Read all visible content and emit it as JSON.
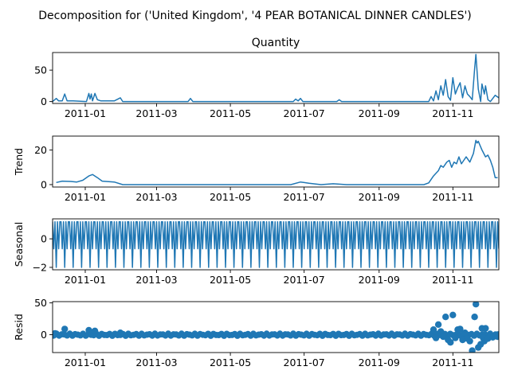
{
  "suptitle": "Decomposition for ('United Kingdom', '4 PEAR BOTANICAL DINNER CANDLES')",
  "line_color": "#1f77b4",
  "x_ticks": [
    "2011-01",
    "2011-03",
    "2011-05",
    "2011-07",
    "2011-09",
    "2011-11"
  ],
  "chart_data": [
    {
      "type": "line",
      "title": "Quantity",
      "ylabel": "",
      "ylim": [
        -3,
        78
      ],
      "yticks": [
        0,
        50
      ],
      "x_range": [
        "2010-12-05",
        "2011-12-09"
      ],
      "points": [
        [
          "2010-12-05",
          0
        ],
        [
          "2010-12-08",
          5
        ],
        [
          "2010-12-10",
          1
        ],
        [
          "2010-12-13",
          1
        ],
        [
          "2010-12-15",
          12
        ],
        [
          "2010-12-17",
          1
        ],
        [
          "2010-12-22",
          1
        ],
        [
          "2011-01-02",
          0
        ],
        [
          "2011-01-04",
          13
        ],
        [
          "2011-01-05",
          4
        ],
        [
          "2011-01-06",
          12
        ],
        [
          "2011-01-07",
          1
        ],
        [
          "2011-01-09",
          13
        ],
        [
          "2011-01-11",
          3
        ],
        [
          "2011-01-14",
          1
        ],
        [
          "2011-01-20",
          1
        ],
        [
          "2011-01-25",
          1
        ],
        [
          "2011-01-30",
          6
        ],
        [
          "2011-02-01",
          0
        ],
        [
          "2011-03-27",
          0
        ],
        [
          "2011-03-29",
          5
        ],
        [
          "2011-03-31",
          0
        ],
        [
          "2011-06-22",
          0
        ],
        [
          "2011-06-24",
          4
        ],
        [
          "2011-06-26",
          1
        ],
        [
          "2011-06-28",
          5
        ],
        [
          "2011-06-30",
          0
        ],
        [
          "2011-07-28",
          0
        ],
        [
          "2011-07-30",
          3
        ],
        [
          "2011-08-01",
          0
        ],
        [
          "2011-10-12",
          0
        ],
        [
          "2011-10-14",
          8
        ],
        [
          "2011-10-16",
          1
        ],
        [
          "2011-10-18",
          17
        ],
        [
          "2011-10-20",
          3
        ],
        [
          "2011-10-22",
          25
        ],
        [
          "2011-10-24",
          10
        ],
        [
          "2011-10-26",
          35
        ],
        [
          "2011-10-28",
          8
        ],
        [
          "2011-10-30",
          2
        ],
        [
          "2011-11-01",
          38
        ],
        [
          "2011-11-03",
          12
        ],
        [
          "2011-11-05",
          22
        ],
        [
          "2011-11-07",
          30
        ],
        [
          "2011-11-09",
          6
        ],
        [
          "2011-11-11",
          25
        ],
        [
          "2011-11-13",
          12
        ],
        [
          "2011-11-15",
          8
        ],
        [
          "2011-11-17",
          3
        ],
        [
          "2011-11-19",
          52
        ],
        [
          "2011-11-20",
          75
        ],
        [
          "2011-11-22",
          20
        ],
        [
          "2011-11-24",
          0
        ],
        [
          "2011-11-25",
          28
        ],
        [
          "2011-11-27",
          12
        ],
        [
          "2011-11-28",
          25
        ],
        [
          "2011-11-30",
          3
        ],
        [
          "2011-12-02",
          0
        ],
        [
          "2011-12-04",
          5
        ],
        [
          "2011-12-06",
          10
        ],
        [
          "2011-12-09",
          6
        ]
      ]
    },
    {
      "type": "line",
      "title": "",
      "ylabel": "Trend",
      "ylim": [
        -1.4,
        28
      ],
      "yticks": [
        0,
        20
      ],
      "x_range": [
        "2010-12-05",
        "2011-12-09"
      ],
      "points": [
        [
          "2010-12-08",
          1.2
        ],
        [
          "2010-12-13",
          2
        ],
        [
          "2010-12-20",
          1.8
        ],
        [
          "2010-12-25",
          1.5
        ],
        [
          "2010-12-30",
          2.5
        ],
        [
          "2011-01-04",
          5
        ],
        [
          "2011-01-07",
          5.8
        ],
        [
          "2011-01-11",
          4
        ],
        [
          "2011-01-15",
          2
        ],
        [
          "2011-01-25",
          1.5
        ],
        [
          "2011-02-01",
          0
        ],
        [
          "2011-06-20",
          0
        ],
        [
          "2011-06-28",
          1.5
        ],
        [
          "2011-07-05",
          0.8
        ],
        [
          "2011-07-15",
          0
        ],
        [
          "2011-07-25",
          0.5
        ],
        [
          "2011-08-05",
          0
        ],
        [
          "2011-10-08",
          0
        ],
        [
          "2011-10-12",
          1
        ],
        [
          "2011-10-16",
          5
        ],
        [
          "2011-10-20",
          8
        ],
        [
          "2011-10-22",
          11
        ],
        [
          "2011-10-24",
          10
        ],
        [
          "2011-10-27",
          13
        ],
        [
          "2011-10-29",
          14
        ],
        [
          "2011-10-31",
          10
        ],
        [
          "2011-11-02",
          13
        ],
        [
          "2011-11-04",
          12
        ],
        [
          "2011-11-06",
          16
        ],
        [
          "2011-11-08",
          12
        ],
        [
          "2011-11-10",
          14
        ],
        [
          "2011-11-12",
          16
        ],
        [
          "2011-11-15",
          13
        ],
        [
          "2011-11-18",
          18
        ],
        [
          "2011-11-20",
          25.5
        ],
        [
          "2011-11-21",
          24
        ],
        [
          "2011-11-22",
          25
        ],
        [
          "2011-11-25",
          20
        ],
        [
          "2011-11-28",
          16
        ],
        [
          "2011-11-30",
          17
        ],
        [
          "2011-12-02",
          14
        ],
        [
          "2011-12-04",
          10
        ],
        [
          "2011-12-06",
          4
        ],
        [
          "2011-12-08",
          4
        ]
      ]
    },
    {
      "type": "line",
      "title": "",
      "ylabel": "Seasonal",
      "ylim": [
        -2.17,
        1.4
      ],
      "yticks": [
        -2,
        0
      ],
      "x_range": [
        "2010-12-05",
        "2011-12-09"
      ],
      "period_days": 7,
      "pattern": [
        1.2,
        -0.7,
        1.2,
        -2.0,
        1.2,
        -0.7,
        1.2
      ]
    },
    {
      "type": "scatter",
      "title": "",
      "ylabel": "Resid",
      "ylim": [
        -28,
        52
      ],
      "yticks": [
        0,
        50
      ],
      "x_range": [
        "2010-12-05",
        "2011-12-09"
      ],
      "points": [
        [
          "2010-12-07",
          2
        ],
        [
          "2010-12-15",
          9
        ],
        [
          "2011-01-04",
          7
        ],
        [
          "2011-01-09",
          6
        ],
        [
          "2011-01-30",
          3
        ],
        [
          "2011-10-16",
          8
        ],
        [
          "2011-10-18",
          -5
        ],
        [
          "2011-10-20",
          16
        ],
        [
          "2011-10-22",
          5
        ],
        [
          "2011-10-24",
          -3
        ],
        [
          "2011-10-26",
          28
        ],
        [
          "2011-10-28",
          -8
        ],
        [
          "2011-10-30",
          -12
        ],
        [
          "2011-11-01",
          31
        ],
        [
          "2011-11-03",
          -5
        ],
        [
          "2011-11-05",
          8
        ],
        [
          "2011-11-07",
          9
        ],
        [
          "2011-11-09",
          -8
        ],
        [
          "2011-11-11",
          3
        ],
        [
          "2011-11-13",
          -6
        ],
        [
          "2011-11-15",
          -10
        ],
        [
          "2011-11-17",
          -25
        ],
        [
          "2011-11-19",
          28
        ],
        [
          "2011-11-20",
          48
        ],
        [
          "2011-11-22",
          -20
        ],
        [
          "2011-11-24",
          -15
        ],
        [
          "2011-11-25",
          10
        ],
        [
          "2011-11-26",
          -5
        ],
        [
          "2011-11-27",
          -10
        ],
        [
          "2011-11-28",
          10
        ],
        [
          "2011-11-30",
          -6
        ],
        [
          "2011-12-02",
          -3
        ],
        [
          "2011-12-04",
          -4
        ],
        [
          "2011-12-06",
          -1
        ],
        [
          "2011-12-08",
          -3
        ]
      ]
    }
  ]
}
